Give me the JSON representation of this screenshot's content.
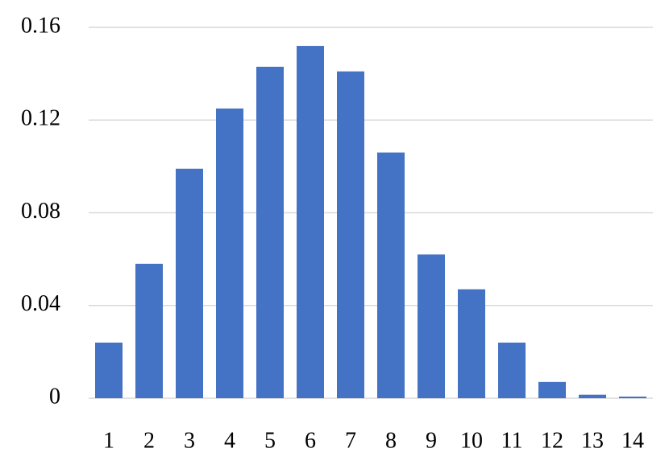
{
  "chart_data": {
    "type": "bar",
    "categories": [
      "1",
      "2",
      "3",
      "4",
      "5",
      "6",
      "7",
      "8",
      "9",
      "10",
      "11",
      "12",
      "13",
      "14"
    ],
    "values": [
      0.024,
      0.058,
      0.099,
      0.125,
      0.143,
      0.152,
      0.141,
      0.106,
      0.062,
      0.047,
      0.024,
      0.007,
      0.0015,
      0.0007
    ],
    "color": "#4472c4",
    "ylim": [
      0,
      0.16
    ],
    "yticks": [
      0,
      0.04,
      0.08,
      0.12,
      0.16
    ],
    "grid": true
  }
}
